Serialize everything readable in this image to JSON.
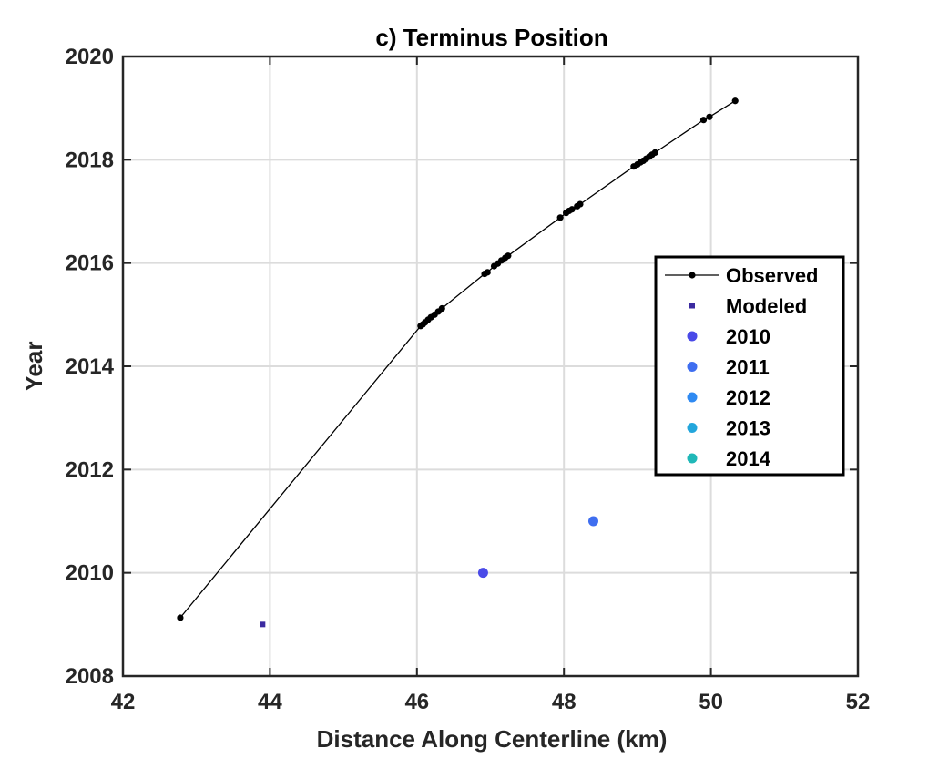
{
  "chart_data": {
    "type": "scatter",
    "title": "c) Terminus Position",
    "xlabel": "Distance Along Centerline (km)",
    "ylabel": "Year",
    "xlim": [
      42,
      52
    ],
    "ylim": [
      2008,
      2020
    ],
    "xticks": [
      42,
      44,
      46,
      48,
      50,
      52
    ],
    "yticks": [
      2008,
      2010,
      2012,
      2014,
      2016,
      2018,
      2020
    ],
    "grid": true,
    "legend_position": "right",
    "series": [
      {
        "name": "Observed",
        "style": "line-with-points",
        "color": "#000000",
        "points": [
          [
            42.78,
            2009.13
          ],
          [
            46.05,
            2014.78
          ],
          [
            46.08,
            2014.81
          ],
          [
            46.11,
            2014.85
          ],
          [
            46.15,
            2014.9
          ],
          [
            46.19,
            2014.95
          ],
          [
            46.24,
            2015.0
          ],
          [
            46.29,
            2015.06
          ],
          [
            46.34,
            2015.12
          ],
          [
            46.92,
            2015.79
          ],
          [
            46.96,
            2015.82
          ],
          [
            47.05,
            2015.94
          ],
          [
            47.1,
            2015.99
          ],
          [
            47.15,
            2016.05
          ],
          [
            47.2,
            2016.1
          ],
          [
            47.24,
            2016.14
          ],
          [
            47.95,
            2016.88
          ],
          [
            48.03,
            2016.97
          ],
          [
            48.07,
            2017.01
          ],
          [
            48.11,
            2017.04
          ],
          [
            48.18,
            2017.1
          ],
          [
            48.22,
            2017.14
          ],
          [
            48.95,
            2017.87
          ],
          [
            49.0,
            2017.91
          ],
          [
            49.04,
            2017.95
          ],
          [
            49.08,
            2017.98
          ],
          [
            49.12,
            2018.02
          ],
          [
            49.16,
            2018.06
          ],
          [
            49.2,
            2018.1
          ],
          [
            49.24,
            2018.14
          ],
          [
            49.9,
            2018.77
          ],
          [
            49.98,
            2018.83
          ],
          [
            50.33,
            2019.14
          ]
        ]
      },
      {
        "name": "Modeled",
        "style": "points",
        "color": "#3b2aa0",
        "points": [
          [
            43.9,
            2009.0
          ]
        ]
      },
      {
        "name": "2010",
        "style": "points",
        "color": "#4a4ae8",
        "points": [
          [
            46.9,
            2010.0
          ]
        ]
      },
      {
        "name": "2011",
        "style": "points",
        "color": "#3f6ef0",
        "points": []
      },
      {
        "name": "2012",
        "style": "points",
        "color": "#2f8af2",
        "points": []
      },
      {
        "name": "2013",
        "style": "points",
        "color": "#23a6dc",
        "points": []
      },
      {
        "name": "2014",
        "style": "points",
        "color": "#20b8b8",
        "points": []
      }
    ],
    "extra_points": [
      {
        "x": 48.4,
        "y": 2011.0,
        "color": "#3f6ef0"
      }
    ]
  }
}
